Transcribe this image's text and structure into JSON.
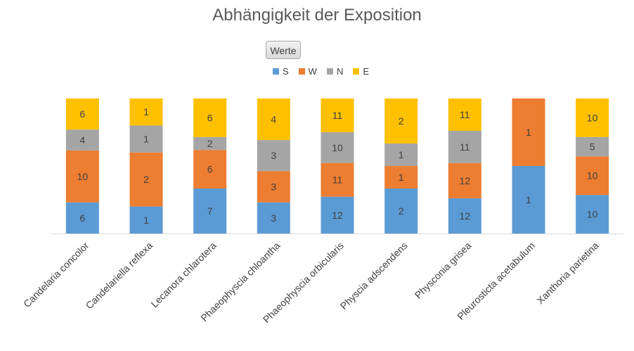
{
  "chart_data": {
    "type": "bar",
    "stacked": true,
    "percent": true,
    "title": "Abhängigkeit der Exposition",
    "field_button": "Werte",
    "legend_position": "top",
    "categories": [
      "Candelaria concolor",
      "Candelariella reflexa",
      "Lecanora chlarotera",
      "Phaeophyscia chloantha",
      "Phaeophyscia orbicularis",
      "Physcia adscendens",
      "Physconia grisea",
      "Pleurosticta acetabulum",
      "Xanthoria parietina"
    ],
    "series": [
      {
        "name": "S",
        "color": "#5b9bd5",
        "values": [
          6,
          1,
          7,
          3,
          12,
          2,
          12,
          1,
          10
        ]
      },
      {
        "name": "W",
        "color": "#ed7d31",
        "values": [
          10,
          2,
          6,
          3,
          11,
          1,
          12,
          1,
          10
        ]
      },
      {
        "name": "N",
        "color": "#a5a5a5",
        "values": [
          4,
          1,
          2,
          3,
          10,
          1,
          11,
          0,
          5
        ]
      },
      {
        "name": "E",
        "color": "#ffc000",
        "values": [
          6,
          1,
          6,
          4,
          11,
          2,
          11,
          0,
          10
        ]
      }
    ],
    "grid": false
  }
}
